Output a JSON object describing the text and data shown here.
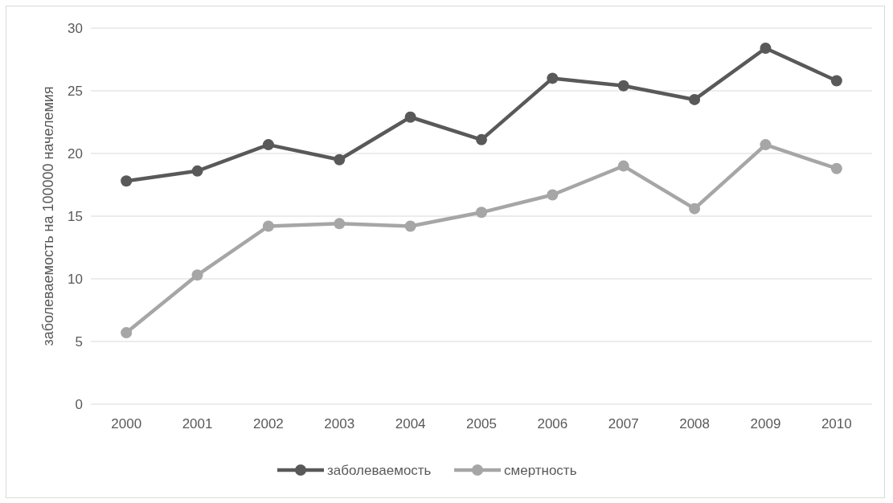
{
  "chart_data": {
    "type": "line",
    "ylabel": "заболеваемость на 100000 начелемия",
    "categories": [
      "2000",
      "2001",
      "2002",
      "2003",
      "2004",
      "2005",
      "2006",
      "2007",
      "2008",
      "2009",
      "2010"
    ],
    "series": [
      {
        "name": "заболеваемость",
        "color": "#595959",
        "values": [
          17.8,
          18.6,
          20.7,
          19.5,
          22.9,
          21.1,
          26.0,
          25.4,
          24.3,
          28.4,
          25.8
        ]
      },
      {
        "name": "смертность",
        "color": "#a6a6a6",
        "values": [
          5.7,
          10.3,
          14.2,
          14.4,
          14.2,
          15.3,
          16.7,
          19.0,
          15.6,
          20.7,
          18.8
        ]
      }
    ],
    "ylim": [
      0,
      30
    ],
    "yticks": [
      0,
      5,
      10,
      15,
      20,
      25,
      30
    ],
    "grid": "y",
    "legend": "bottom",
    "marker": "circle",
    "line_style": "solid"
  }
}
